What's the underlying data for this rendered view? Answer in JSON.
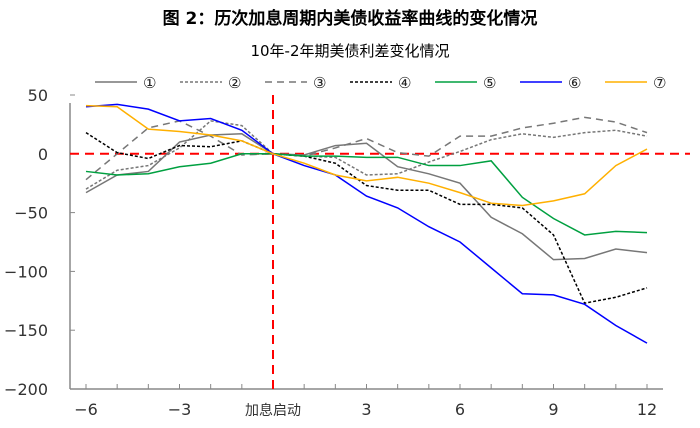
{
  "figure_title": "图 2：历次加息周期内美债收益率曲线的变化情况",
  "chart_data": {
    "type": "line",
    "title": "10年-2年期美债利差变化情况",
    "xlabel": "",
    "ylabel": "",
    "x": [
      -6,
      -5,
      -4,
      -3,
      -2,
      -1,
      0,
      1,
      2,
      3,
      4,
      5,
      6,
      7,
      8,
      9,
      10,
      11,
      12
    ],
    "xlim": [
      -6,
      12
    ],
    "ylim": [
      -200,
      50
    ],
    "x_ticks": [
      {
        "value": -6,
        "label": "−6"
      },
      {
        "value": -3,
        "label": "−3"
      },
      {
        "value": 0,
        "label": "加息启动"
      },
      {
        "value": 3,
        "label": "3"
      },
      {
        "value": 6,
        "label": "6"
      },
      {
        "value": 9,
        "label": "9"
      },
      {
        "value": 12,
        "label": "12"
      }
    ],
    "y_ticks": [
      {
        "value": 50,
        "label": "50"
      },
      {
        "value": 0,
        "label": "0"
      },
      {
        "value": -50,
        "label": "−50"
      },
      {
        "value": -100,
        "label": "−100"
      },
      {
        "value": -150,
        "label": "−150"
      },
      {
        "value": -200,
        "label": "−200"
      }
    ],
    "grid": false,
    "legend_position": "top",
    "reference_lines": {
      "x": 0,
      "y": 0,
      "color": "#ff0000",
      "style": "dashed"
    },
    "series": [
      {
        "name": "①",
        "color": "#777777",
        "style": "solid",
        "values": [
          -33,
          -18,
          -15,
          10,
          16,
          17,
          0,
          -1,
          7,
          9,
          -11,
          -17,
          -25,
          -54,
          -68,
          -90,
          -89,
          -81,
          -84
        ]
      },
      {
        "name": "②",
        "color": "#777777",
        "style": "fine-dash",
        "values": [
          -30,
          -14,
          -10,
          5,
          28,
          24,
          0,
          -2,
          -3,
          -18,
          -17,
          -7,
          2,
          12,
          17,
          14,
          18,
          20,
          15
        ]
      },
      {
        "name": "③",
        "color": "#777777",
        "style": "long-dash",
        "values": [
          -22,
          0,
          22,
          28,
          15,
          -1,
          0,
          -2,
          5,
          13,
          1,
          -2,
          15,
          15,
          22,
          26,
          31,
          27,
          18
        ]
      },
      {
        "name": "④",
        "color": "#000000",
        "style": "fine-dash",
        "values": [
          18,
          1,
          -4,
          7,
          6,
          11,
          0,
          -2,
          -8,
          -27,
          -31,
          -31,
          -43,
          -43,
          -46,
          -69,
          -127,
          -122,
          -114
        ]
      },
      {
        "name": "⑤",
        "color": "#00a040",
        "style": "solid",
        "values": [
          -15,
          -18,
          -17,
          -11,
          -8,
          0,
          0,
          -2,
          -2,
          -3,
          -3,
          -10,
          -10,
          -6,
          -37,
          -55,
          -69,
          -66,
          -67
        ]
      },
      {
        "name": "⑥",
        "color": "#0000ff",
        "style": "solid",
        "values": [
          40,
          42,
          38,
          28,
          30,
          20,
          0,
          -10,
          -18,
          -36,
          -46,
          -62,
          -75,
          -97,
          -119,
          -120,
          -128,
          -146,
          -161
        ]
      },
      {
        "name": "⑦",
        "color": "#ffb000",
        "style": "solid",
        "values": [
          41,
          40,
          21,
          19,
          16,
          11,
          0,
          -8,
          -18,
          -23,
          -20,
          -25,
          -33,
          -42,
          -44,
          -40,
          -34,
          -10,
          4
        ]
      }
    ]
  }
}
